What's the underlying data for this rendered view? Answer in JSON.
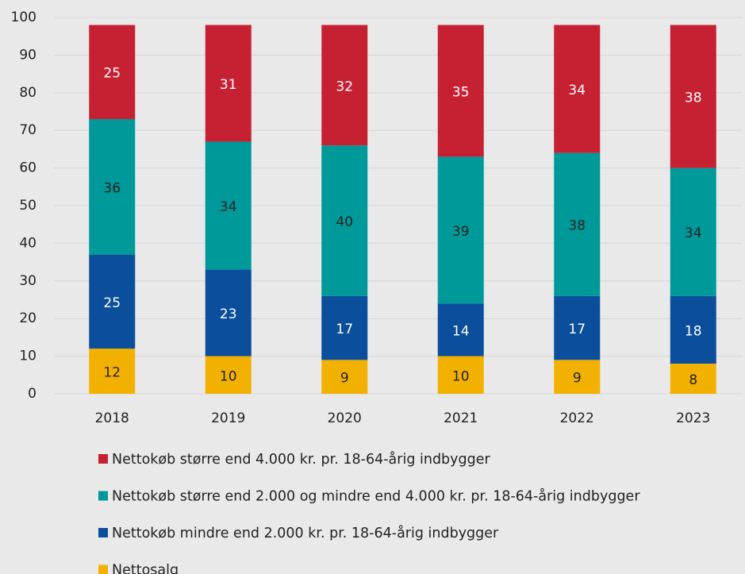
{
  "chart_data": {
    "type": "stacked_bar",
    "categories": [
      "2018",
      "2019",
      "2020",
      "2021",
      "2022",
      "2023"
    ],
    "series": [
      {
        "name": "Nettosalg",
        "color": "#f2b100",
        "label_color": "#222222",
        "values": [
          12,
          10,
          9,
          10,
          9,
          8
        ]
      },
      {
        "name": "Nettokøb mindre end 2.000 kr. pr. 18-64-årig indbygger",
        "color": "#0b4f9c",
        "label_color": "#ffffff",
        "values": [
          25,
          23,
          17,
          14,
          17,
          18
        ]
      },
      {
        "name": "Nettokøb større end 2.000 og mindre end 4.000 kr. pr. 18-64-årig indbygger",
        "color": "#00999a",
        "label_color": "#222222",
        "values": [
          36,
          34,
          40,
          39,
          38,
          34
        ]
      },
      {
        "name": "Nettokøb større end 4.000 kr. pr. 18-64-årig indbygger",
        "color": "#c62133",
        "label_color": "#ffffff",
        "values": [
          25,
          31,
          32,
          35,
          34,
          38
        ]
      }
    ],
    "ylim": [
      0,
      100
    ],
    "yticks": [
      0,
      10,
      20,
      30,
      40,
      50,
      60,
      70,
      80,
      90,
      100
    ],
    "grid": true
  }
}
